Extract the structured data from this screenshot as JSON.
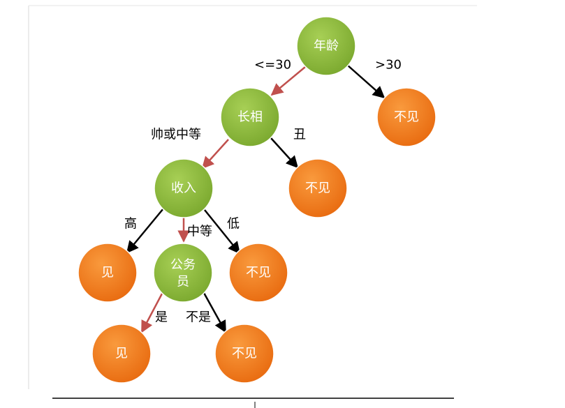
{
  "colors": {
    "decision_node": "#8dbb3c",
    "leaf_node": "#f27a1a",
    "selected_edge": "#c0504d",
    "other_edge": "#000000"
  },
  "nodes": {
    "age": "年龄",
    "appearance": "长相",
    "income": "收入",
    "civil_servant_line1": "公务",
    "civil_servant_line2": "员",
    "leaf_age_gt30": "不见",
    "leaf_ugly": "不见",
    "leaf_income_high": "见",
    "leaf_income_low": "不见",
    "leaf_cs_yes": "见",
    "leaf_cs_no": "不见"
  },
  "edges": {
    "age_le30": "<=30",
    "age_gt30": ">30",
    "handsome_or_medium": "帅或中等",
    "ugly": "丑",
    "income_high": "高",
    "income_medium": "中等",
    "income_low": "低",
    "cs_yes": "是",
    "cs_no": "不是"
  }
}
